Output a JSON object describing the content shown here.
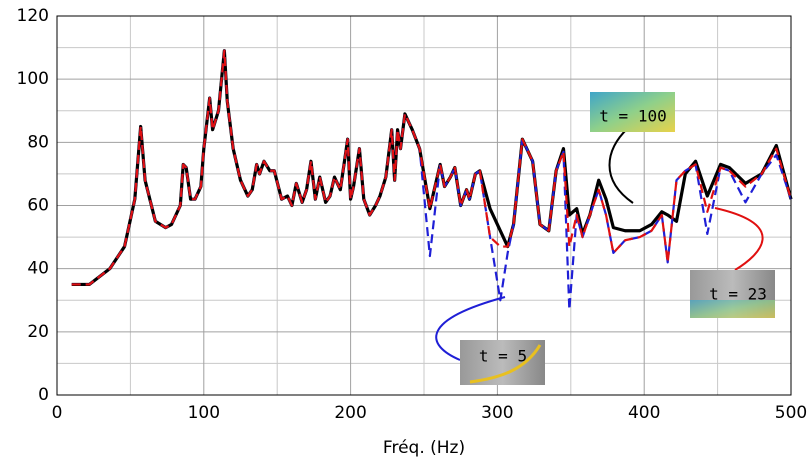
{
  "chart_data": {
    "type": "line",
    "xlabel": "Fréq. (Hz)",
    "xlim": [
      0,
      500
    ],
    "xticks": [
      0,
      100,
      200,
      300,
      400,
      500
    ],
    "ylim": [
      0,
      120
    ],
    "yticks": [
      0,
      20,
      40,
      60,
      80,
      100,
      120
    ],
    "minor_xticks": [
      50,
      150,
      250,
      350,
      450
    ],
    "minor_yticks": [
      10,
      30,
      50,
      70,
      90,
      110
    ],
    "grid": true,
    "x": [
      10,
      22,
      36,
      46,
      53,
      57,
      60,
      67,
      74,
      78,
      84,
      86,
      88,
      91,
      94,
      98,
      100,
      104,
      106,
      110,
      114,
      116,
      120,
      125,
      130,
      133,
      136,
      138,
      141,
      145,
      148,
      153,
      157,
      160,
      163,
      167,
      170,
      173,
      176,
      179,
      183,
      186,
      189,
      193,
      198,
      200,
      202,
      206,
      209,
      213,
      217,
      220,
      224,
      228,
      230,
      232,
      234,
      237,
      242,
      247,
      254,
      261,
      264,
      268,
      271,
      275,
      279,
      281,
      285,
      288,
      295,
      302,
      307,
      311,
      317,
      324,
      329,
      335,
      340,
      345,
      349,
      354,
      358,
      363,
      369,
      374,
      379,
      387,
      397,
      405,
      412,
      416,
      422,
      428,
      435,
      443,
      452,
      458,
      469,
      480,
      490,
      500
    ],
    "series": [
      {
        "name": "t = 100",
        "color": "#000000",
        "linestyle": "solid",
        "values": [
          35,
          35,
          40,
          47,
          62,
          85,
          68,
          55,
          53,
          54,
          60,
          73,
          72,
          62,
          62,
          66,
          78,
          94,
          84,
          90,
          109,
          93,
          78,
          68,
          63,
          65,
          73,
          70,
          74,
          71,
          71,
          62,
          63,
          60,
          67,
          61,
          65,
          74,
          62,
          69,
          61,
          63,
          69,
          65,
          81,
          62,
          66,
          78,
          62,
          57,
          60,
          63,
          69,
          84,
          68,
          84,
          78,
          89,
          84,
          78,
          59,
          73,
          66,
          69,
          72,
          60,
          65,
          62,
          70,
          71,
          59,
          52,
          47,
          54,
          81,
          74,
          54,
          52,
          71,
          78,
          57,
          59,
          51,
          57,
          68,
          62,
          53,
          52,
          52,
          54,
          58,
          57,
          55,
          70,
          74,
          63,
          73,
          72,
          67,
          70,
          79,
          62
        ]
      },
      {
        "name": "t = 5",
        "color": "#1f1fd6",
        "linestyle": "dashed",
        "values": [
          35,
          35,
          40,
          47,
          62,
          85,
          68,
          55,
          53,
          54,
          60,
          73,
          72,
          62,
          62,
          66,
          78,
          94,
          84,
          90,
          109,
          93,
          78,
          68,
          63,
          65,
          73,
          70,
          74,
          71,
          71,
          62,
          63,
          60,
          67,
          61,
          65,
          74,
          62,
          69,
          61,
          63,
          69,
          65,
          81,
          62,
          66,
          78,
          62,
          57,
          60,
          63,
          69,
          84,
          68,
          84,
          78,
          89,
          84,
          78,
          44,
          73,
          66,
          69,
          72,
          60,
          65,
          62,
          70,
          71,
          50,
          30,
          45,
          54,
          81,
          74,
          54,
          52,
          71,
          77,
          27,
          57,
          50,
          57,
          65,
          57,
          45,
          49,
          50,
          52,
          57,
          42,
          68,
          71,
          73,
          51,
          72,
          71,
          61,
          70,
          76,
          62
        ]
      },
      {
        "name": "t = 23",
        "color": "#e01010",
        "linestyle": "dashed",
        "values": [
          35,
          35,
          40,
          47,
          62,
          85,
          68,
          55,
          53,
          54,
          60,
          73,
          72,
          62,
          62,
          66,
          78,
          94,
          84,
          90,
          109,
          93,
          78,
          68,
          63,
          65,
          73,
          70,
          74,
          71,
          71,
          62,
          63,
          60,
          67,
          61,
          65,
          74,
          62,
          69,
          61,
          63,
          69,
          65,
          81,
          62,
          66,
          78,
          62,
          57,
          60,
          63,
          69,
          84,
          68,
          84,
          78,
          89,
          84,
          78,
          59,
          73,
          66,
          69,
          72,
          60,
          65,
          62,
          70,
          71,
          50,
          47,
          47,
          54,
          81,
          74,
          54,
          52,
          71,
          77,
          47,
          57,
          50,
          57,
          65,
          57,
          45,
          49,
          50,
          52,
          57,
          42,
          68,
          71,
          73,
          58,
          72,
          71,
          66,
          70,
          78,
          62
        ]
      }
    ]
  }
}
